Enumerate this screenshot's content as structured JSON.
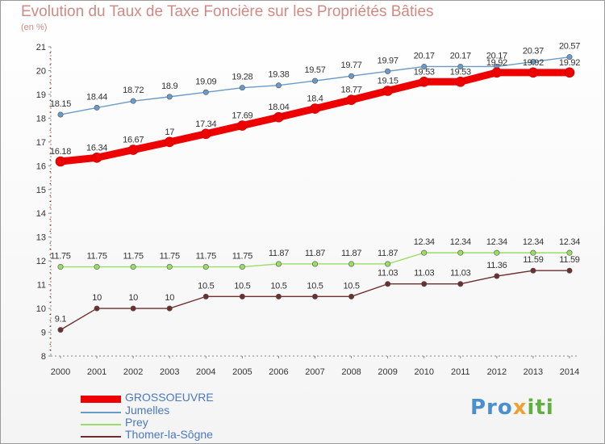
{
  "title": "Evolution du Taux de Taxe Foncière sur les Propriétés Bâties",
  "subtitle": "(en %)",
  "logo": {
    "text_a": "Pro",
    "text_b": "x",
    "text_c": "iti"
  },
  "chart_data": {
    "type": "line",
    "title": "Evolution du Taux de Taxe Foncière sur les Propriétés Bâties",
    "ylabel": "(en %)",
    "xlabel": "",
    "ylim": [
      8,
      21
    ],
    "yticks": [
      "8",
      "9",
      "10",
      "11",
      "12",
      "13",
      "14",
      "15",
      "16",
      "17",
      "18",
      "19",
      "20",
      "21"
    ],
    "categories": [
      "2000",
      "2001",
      "2002",
      "2003",
      "2004",
      "2005",
      "2006",
      "2007",
      "2008",
      "2009",
      "2010",
      "2011",
      "2012",
      "2013",
      "2014"
    ],
    "grid": false,
    "legend": "bottom-left",
    "series": [
      {
        "name": "GROSSOEUVRE",
        "color": "#ee0000",
        "values": [
          16.18,
          16.34,
          16.67,
          17,
          17.34,
          17.69,
          18.04,
          18.4,
          18.77,
          19.15,
          19.53,
          19.53,
          19.92,
          19.92,
          19.92
        ],
        "labels": [
          "16.18",
          "16.34",
          "16.67",
          "17",
          "17.34",
          "17.69",
          "18.04",
          "18.4",
          "18.77",
          "19.15",
          "19.53",
          "19.53",
          "19.92",
          "19.92",
          "19.92"
        ]
      },
      {
        "name": "Jumelles",
        "color": "#6a9bc8",
        "values": [
          18.15,
          18.44,
          18.72,
          18.9,
          19.09,
          19.28,
          19.38,
          19.57,
          19.77,
          19.97,
          20.17,
          20.17,
          20.17,
          20.37,
          20.57
        ],
        "labels": [
          "18.15",
          "18.44",
          "18.72",
          "18.9",
          "19.09",
          "19.28",
          "19.38",
          "19.57",
          "19.77",
          "19.97",
          "20.17",
          "20.17",
          "20.17",
          "20.37",
          "20.57"
        ]
      },
      {
        "name": "Prey",
        "color": "#99dd66",
        "values": [
          11.75,
          11.75,
          11.75,
          11.75,
          11.75,
          11.75,
          11.87,
          11.87,
          11.87,
          11.87,
          12.34,
          12.34,
          12.34,
          12.34,
          12.34
        ],
        "labels": [
          "11.75",
          "11.75",
          "11.75",
          "11.75",
          "11.75",
          "11.75",
          "11.87",
          "11.87",
          "11.87",
          "11.87",
          "12.34",
          "12.34",
          "12.34",
          "12.34",
          "12.34"
        ]
      },
      {
        "name": "Thomer-la-Sôgne",
        "color": "#6e2e2e",
        "values": [
          9.1,
          10,
          10,
          10,
          10.5,
          10.5,
          10.5,
          10.5,
          10.5,
          11.03,
          11.03,
          11.03,
          11.36,
          11.59,
          11.59
        ],
        "labels": [
          "9.1",
          "10",
          "10",
          "10",
          "10.5",
          "10.5",
          "10.5",
          "10.5",
          "10.5",
          "11.03",
          "11.03",
          "11.03",
          "11.36",
          "11.59",
          "11.59"
        ]
      }
    ]
  }
}
